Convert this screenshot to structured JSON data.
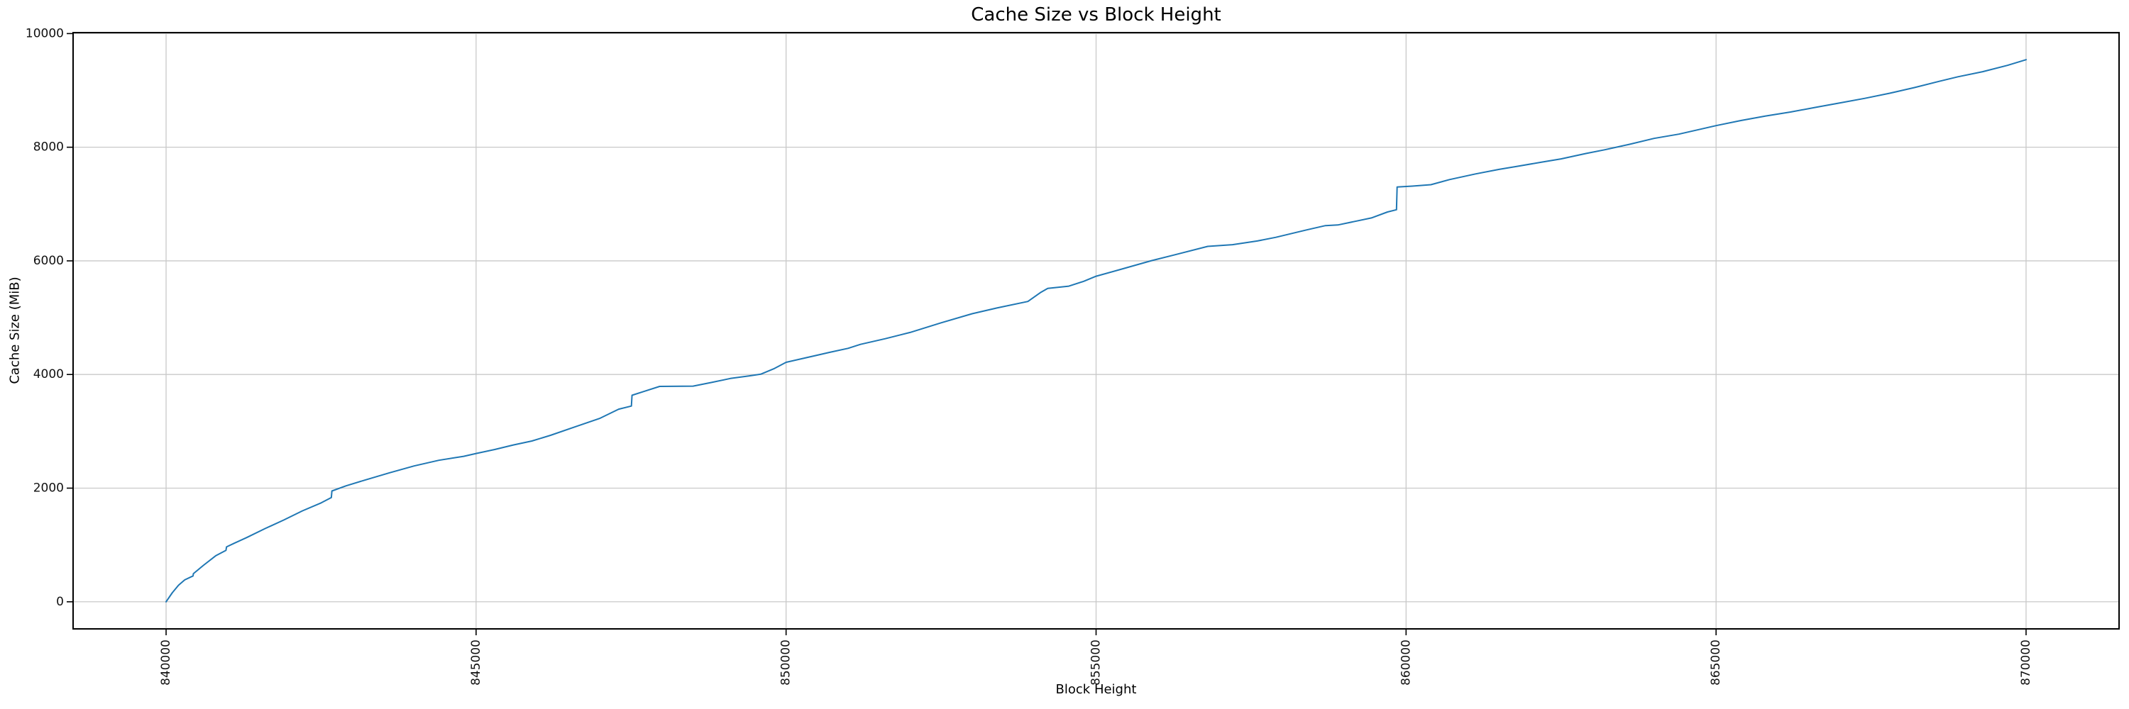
{
  "chart_data": {
    "type": "line",
    "title": "Cache Size vs Block Height",
    "xlabel": "Block Height",
    "ylabel": "Cache Size (MiB)",
    "xlim": [
      838500,
      871500
    ],
    "ylim": [
      -477,
      10017
    ],
    "grid": true,
    "legend": "none",
    "line_color": "#1f77b4",
    "grid_color": "#c9c9c9",
    "spine_color": "#000000",
    "xticks": [
      840000,
      845000,
      850000,
      855000,
      860000,
      865000,
      870000
    ],
    "xtick_labels": [
      "840000",
      "845000",
      "850000",
      "855000",
      "860000",
      "865000",
      "870000"
    ],
    "yticks": [
      0,
      2000,
      4000,
      6000,
      8000,
      10000
    ],
    "ytick_labels": [
      "0",
      "2000",
      "4000",
      "6000",
      "8000",
      "10000"
    ],
    "series": [
      {
        "name": "Cache Size (MiB)",
        "x": [
          840000,
          840100,
          840200,
          840300,
          840435,
          840440,
          840600,
          840800,
          840965,
          840975,
          841100,
          841300,
          841600,
          841900,
          842200,
          842500,
          842665,
          842675,
          842900,
          843200,
          843600,
          844000,
          844400,
          844800,
          845000,
          845300,
          845600,
          845900,
          846200,
          846600,
          847000,
          847300,
          847505,
          847515,
          847700,
          847960,
          848500,
          848800,
          849100,
          849400,
          849590,
          849800,
          850000,
          850300,
          850700,
          851000,
          851200,
          851600,
          852000,
          852500,
          853000,
          853400,
          853900,
          854100,
          854220,
          854560,
          854800,
          855000,
          855400,
          855900,
          856300,
          856800,
          857200,
          857600,
          857900,
          858400,
          858700,
          858900,
          859200,
          859440,
          859700,
          859845,
          859855,
          860100,
          860400,
          860700,
          861120,
          861500,
          861800,
          862200,
          862500,
          862900,
          863200,
          863600,
          864000,
          864400,
          864800,
          865000,
          865400,
          865800,
          866200,
          866600,
          867000,
          867400,
          867800,
          868200,
          868600,
          868900,
          869300,
          869700,
          870000
        ],
        "y": [
          0,
          160,
          290,
          385,
          455,
          495,
          640,
          810,
          905,
          965,
          1030,
          1130,
          1290,
          1440,
          1600,
          1740,
          1835,
          1950,
          2040,
          2140,
          2270,
          2390,
          2490,
          2560,
          2610,
          2680,
          2760,
          2830,
          2930,
          3080,
          3230,
          3390,
          3445,
          3635,
          3700,
          3790,
          3795,
          3860,
          3930,
          3975,
          4005,
          4100,
          4215,
          4290,
          4390,
          4460,
          4530,
          4630,
          4740,
          4910,
          5070,
          5170,
          5285,
          5440,
          5515,
          5555,
          5640,
          5730,
          5850,
          6005,
          6115,
          6255,
          6285,
          6350,
          6415,
          6545,
          6620,
          6632,
          6700,
          6755,
          6860,
          6900,
          7300,
          7315,
          7340,
          7430,
          7530,
          7610,
          7665,
          7740,
          7795,
          7890,
          7955,
          8050,
          8155,
          8230,
          8330,
          8380,
          8470,
          8550,
          8620,
          8700,
          8780,
          8860,
          8950,
          9050,
          9160,
          9240,
          9330,
          9440,
          9540
        ]
      }
    ]
  }
}
